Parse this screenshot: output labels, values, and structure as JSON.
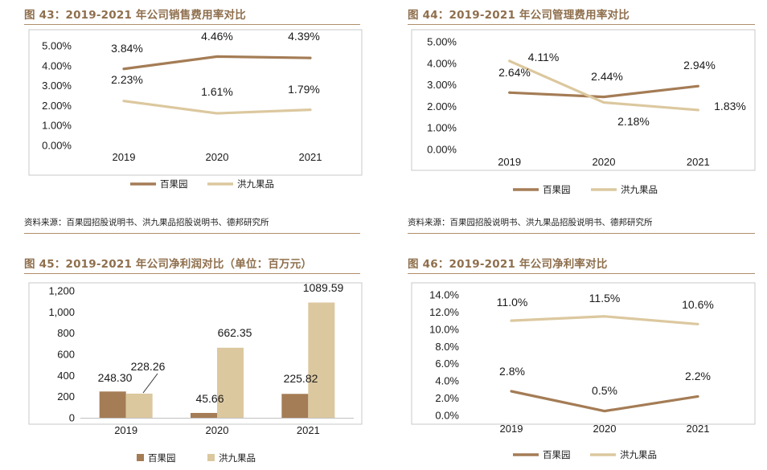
{
  "panels": [
    {
      "title": "图 43：2019-2021 年公司销售费用率对比",
      "source": "资料来源：百果园招股说明书、洪九果品招股说明书、德邦研究所"
    },
    {
      "title": "图 44：2019-2021 年公司管理费用率对比",
      "source": "资料来源：百果园招股说明书、洪九果品招股说明书、德邦研究所"
    },
    {
      "title": "图 45：2019-2021 年公司净利润对比（单位：百万元）",
      "source": ""
    },
    {
      "title": "图 46：2019-2021 年公司净利率对比",
      "source": ""
    }
  ],
  "colors": {
    "baiguoyuan": "#a47c55",
    "hongjiu": "#dcc89f",
    "title": "#8f6f4d",
    "rule": "#b08e6a"
  },
  "chart_data": [
    {
      "type": "line",
      "title": "图 43：2019-2021 年公司销售费用率对比",
      "categories": [
        "2019",
        "2020",
        "2021"
      ],
      "ylim": [
        0,
        5
      ],
      "yticks": [
        "0.00%",
        "1.00%",
        "2.00%",
        "3.00%",
        "4.00%",
        "5.00%"
      ],
      "series": [
        {
          "name": "百果园",
          "values": [
            3.84,
            4.46,
            4.39
          ],
          "labels": [
            "3.84%",
            "4.46%",
            "4.39%"
          ]
        },
        {
          "name": "洪九果品",
          "values": [
            2.23,
            1.61,
            1.79
          ],
          "labels": [
            "2.23%",
            "1.61%",
            "1.79%"
          ]
        }
      ],
      "legend": "bottom"
    },
    {
      "type": "line",
      "title": "图 44：2019-2021 年公司管理费用率对比",
      "categories": [
        "2019",
        "2020",
        "2021"
      ],
      "ylim": [
        0,
        5
      ],
      "yticks": [
        "0.00%",
        "1.00%",
        "2.00%",
        "3.00%",
        "4.00%",
        "5.00%"
      ],
      "series": [
        {
          "name": "百果园",
          "values": [
            2.64,
            2.44,
            2.94
          ],
          "labels": [
            "2.64%",
            "2.44%",
            "2.94%"
          ]
        },
        {
          "name": "洪九果品",
          "values": [
            4.11,
            2.18,
            1.83
          ],
          "labels": [
            "4.11%",
            "2.18%",
            "1.83%"
          ]
        }
      ],
      "legend": "bottom"
    },
    {
      "type": "bar",
      "title": "图 45：2019-2021 年公司净利润对比（单位：百万元）",
      "categories": [
        "2019",
        "2020",
        "2021"
      ],
      "ylim": [
        0,
        1200
      ],
      "yticks": [
        "0",
        "200",
        "400",
        "600",
        "800",
        "1,000",
        "1,200"
      ],
      "series": [
        {
          "name": "百果园",
          "values": [
            248.3,
            45.66,
            225.82
          ],
          "labels": [
            "248.30",
            "45.66",
            "225.82"
          ]
        },
        {
          "name": "洪九果品",
          "values": [
            228.26,
            662.35,
            1089.59
          ],
          "labels": [
            "228.26",
            "662.35",
            "1089.59"
          ]
        }
      ],
      "legend": "bottom"
    },
    {
      "type": "line",
      "title": "图 46：2019-2021 年公司净利率对比",
      "categories": [
        "2019",
        "2020",
        "2021"
      ],
      "ylim": [
        0,
        14
      ],
      "yticks": [
        "0.0%",
        "2.0%",
        "4.0%",
        "6.0%",
        "8.0%",
        "10.0%",
        "12.0%",
        "14.0%"
      ],
      "series": [
        {
          "name": "百果园",
          "values": [
            2.8,
            0.5,
            2.2
          ],
          "labels": [
            "2.8%",
            "0.5%",
            "2.2%"
          ]
        },
        {
          "name": "洪九果品",
          "values": [
            11.0,
            11.5,
            10.6
          ],
          "labels": [
            "11.0%",
            "11.5%",
            "10.6%"
          ]
        }
      ],
      "legend": "bottom"
    }
  ]
}
